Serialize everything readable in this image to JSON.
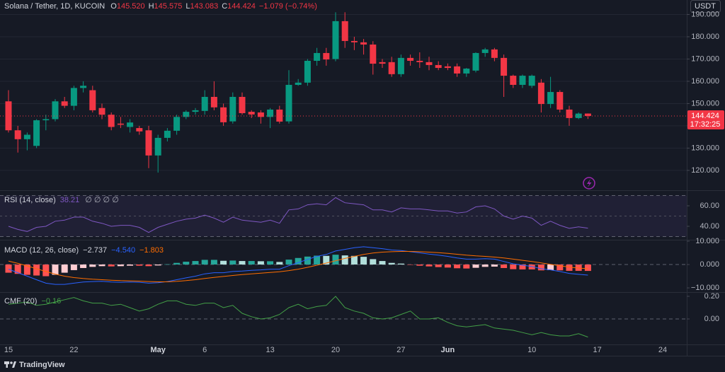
{
  "chart_data": [
    {
      "type": "candlestick",
      "title": "Solana / Tether, 1D, KUCOIN",
      "legend": [
        {
          "key": "O",
          "value": "145.520"
        },
        {
          "key": "H",
          "value": "145.575"
        },
        {
          "key": "L",
          "value": "143.083"
        },
        {
          "key": "C",
          "value": "144.424"
        }
      ],
      "change": "−1.079 (−0.74%)",
      "currency": "USDT",
      "price_label": "144.424",
      "countdown": "17:32:25",
      "categories": [
        "15",
        null,
        null,
        null,
        null,
        null,
        null,
        "22",
        null,
        null,
        null,
        null,
        null,
        null,
        null,
        null,
        "May",
        null,
        null,
        null,
        null,
        "6",
        null,
        null,
        null,
        null,
        null,
        null,
        "13",
        null,
        null,
        null,
        null,
        null,
        null,
        "20",
        null,
        null,
        null,
        null,
        null,
        null,
        "27",
        null,
        null,
        null,
        null,
        "Jun",
        null,
        null,
        null,
        null,
        null,
        null,
        null,
        null,
        "10",
        null,
        null,
        null,
        null,
        null,
        null,
        "17",
        null,
        null,
        null,
        null,
        null,
        null,
        "24",
        null,
        null
      ],
      "open": [
        151,
        138,
        134,
        131,
        142.5,
        143,
        151,
        149,
        157,
        156,
        148,
        145,
        141,
        139.5,
        139,
        138,
        126.7,
        134.6,
        137.8,
        144,
        146.3,
        146.7,
        153,
        148.3,
        142,
        153,
        146.3,
        146,
        144,
        147.3,
        142,
        158.4,
        159.4,
        169.2,
        172.7,
        170,
        187,
        178.1,
        177.5,
        176.5,
        168.6,
        168.6,
        163.2,
        170.5,
        169.2,
        168.6,
        167.3,
        166.7,
        166.7,
        163.5,
        164.8,
        172.7,
        174.3,
        170.5,
        162.5,
        158.4,
        158,
        159.4,
        149.8,
        155.2,
        147.3,
        143.5,
        145.52,
        null,
        null,
        null,
        null,
        null,
        null,
        null,
        null,
        null,
        null
      ],
      "high": [
        156,
        140,
        137,
        143,
        145,
        152,
        153,
        158,
        160,
        158,
        150,
        146,
        144,
        143,
        140,
        140,
        136,
        139,
        145,
        147,
        148,
        156,
        160,
        150,
        155,
        155,
        147,
        147,
        148,
        149,
        165,
        161,
        170,
        175,
        175,
        191,
        191,
        180,
        179,
        178,
        170,
        171,
        172,
        172,
        173,
        171,
        169,
        168,
        168,
        166,
        173,
        175,
        175,
        172,
        163,
        163,
        163,
        161,
        162,
        156,
        149,
        146,
        145.575,
        null,
        null,
        null,
        null,
        null,
        null,
        null,
        null,
        null,
        null
      ],
      "low": [
        137,
        128,
        129,
        130,
        138,
        142,
        148,
        147,
        155,
        146,
        143,
        138,
        139,
        137,
        136,
        121,
        119,
        133,
        136,
        143,
        145,
        145,
        147,
        140,
        141,
        145,
        143.5,
        141,
        139,
        141,
        141,
        158,
        158,
        167,
        167,
        169,
        175,
        174,
        172,
        163,
        166,
        162,
        162,
        167,
        166,
        165,
        165,
        165,
        162,
        162,
        164,
        171,
        169,
        153,
        157,
        157,
        157,
        146,
        148,
        146,
        140,
        143,
        143.083,
        null,
        null,
        null,
        null,
        null,
        null,
        null,
        null,
        null,
        null
      ],
      "close": [
        138,
        134,
        136,
        142.5,
        143,
        151,
        149,
        157,
        158,
        147,
        145,
        139.5,
        140.5,
        141.5,
        137.5,
        126.7,
        134.6,
        137.8,
        144,
        146.3,
        147,
        153,
        148.3,
        141.6,
        153,
        145.7,
        145.1,
        144,
        147.3,
        141.9,
        158.4,
        159.4,
        169.2,
        172.7,
        169.8,
        187,
        178.1,
        177.5,
        176.5,
        167.9,
        167.9,
        163.2,
        170.5,
        169.2,
        168.6,
        167.3,
        166,
        166,
        163.5,
        165.7,
        172.7,
        174.3,
        170.5,
        162.5,
        158.4,
        162.5,
        162.5,
        149.8,
        155.2,
        147.3,
        143.5,
        145.5,
        144.424,
        null,
        null,
        null,
        null,
        null,
        null,
        null,
        null,
        null,
        null
      ],
      "up_color": "#089981",
      "down_color": "#f23645",
      "ylim": [
        111.4,
        196.5
      ],
      "yticks": [
        {
          "value": 120,
          "label": "120.000"
        },
        {
          "value": 130,
          "label": "130.000"
        },
        {
          "value": 140,
          "label": "140.000"
        },
        {
          "value": 150,
          "label": "150.000"
        },
        {
          "value": 160,
          "label": "160.000"
        },
        {
          "value": 170,
          "label": "170.000"
        },
        {
          "value": 180,
          "label": "180.000"
        },
        {
          "value": 190,
          "label": "190.000"
        }
      ],
      "grid": true
    },
    {
      "type": "line",
      "title": "RSI (14, close)",
      "value_label": "38.21",
      "icons": "∅ ∅ ∅ ∅",
      "color": "#7e57c2",
      "values": [
        40,
        37,
        35,
        39,
        40,
        45,
        46,
        49,
        49,
        45,
        43,
        40,
        41,
        41,
        39,
        34,
        39,
        42,
        45,
        47,
        48,
        51,
        48,
        44,
        49,
        46,
        45,
        44,
        46,
        43,
        56,
        57,
        61,
        62,
        61,
        68,
        63,
        62,
        61,
        56,
        56,
        54,
        58,
        57,
        57,
        56,
        55,
        55,
        53,
        54,
        59,
        60,
        57,
        50,
        47,
        50,
        48,
        41,
        45,
        41,
        38,
        39.5,
        38.21,
        null,
        null,
        null,
        null,
        null,
        null,
        null,
        null,
        null,
        null
      ],
      "band": [
        30,
        70
      ],
      "midline": 50,
      "ylim": [
        26.9,
        73.8
      ],
      "yticks": [
        {
          "value": 40,
          "label": "40.00"
        },
        {
          "value": 60,
          "label": "60.00"
        }
      ]
    },
    {
      "type": "macd",
      "title": "MACD (12, 26, close)",
      "histogram": {
        "value_label": "−2.737",
        "colors": [
          "#26a69a",
          "#b2dfdb",
          "#ffcdd2",
          "#ff5252"
        ],
        "values": [
          -3.5,
          -4,
          -4.4,
          -4.7,
          -5,
          -4.4,
          -3.5,
          -2.4,
          -1.5,
          -1,
          -0.7,
          -0.8,
          -0.7,
          -0.5,
          -0.5,
          -0.7,
          -0.4,
          0.1,
          0.7,
          1.2,
          1.5,
          2,
          2,
          1.6,
          1.7,
          1.5,
          1.5,
          1.4,
          1.4,
          1.1,
          2.1,
          2.8,
          3.4,
          3.8,
          3.7,
          4.2,
          3.9,
          3.7,
          3.3,
          2.3,
          1.5,
          0.7,
          0.4,
          -0.1,
          -0.5,
          -0.8,
          -1.1,
          -1.3,
          -1.6,
          -1.7,
          -1.4,
          -1,
          -0.9,
          -1.5,
          -2,
          -2.1,
          -2.1,
          -2.5,
          -2.4,
          -2.5,
          -2.7,
          -2.7,
          -2.737,
          null,
          null,
          null,
          null,
          null,
          null,
          null,
          null,
          null,
          null
        ]
      },
      "macd": {
        "value_label": "−4.540",
        "color": "#2962ff",
        "values": [
          -2,
          -3.5,
          -5,
          -6.5,
          -8,
          -8.5,
          -8.5,
          -8,
          -7.5,
          -7.3,
          -7.2,
          -7.5,
          -7.6,
          -7.5,
          -7.6,
          -8,
          -7.8,
          -7.3,
          -6.5,
          -5.7,
          -5,
          -4,
          -3.5,
          -3.5,
          -3,
          -2.8,
          -2.5,
          -2.3,
          -2,
          -2,
          -0.5,
          0.8,
          2.2,
          3.5,
          4.3,
          5.8,
          6.5,
          7.2,
          7.6,
          7.2,
          6.8,
          6.2,
          6,
          5.5,
          5,
          4.5,
          4,
          3.5,
          2.8,
          2.3,
          2.3,
          2.5,
          2.3,
          1.3,
          0.3,
          -0.3,
          -0.8,
          -1.8,
          -2.3,
          -3,
          -3.8,
          -4.2,
          -4.54,
          null,
          null,
          null,
          null,
          null,
          null,
          null,
          null,
          null,
          null
        ]
      },
      "signal": {
        "value_label": "−1.803",
        "color": "#ff6d00",
        "values": [
          1.5,
          0.5,
          -0.6,
          -1.8,
          -3,
          -4.1,
          -5,
          -5.6,
          -6,
          -6.3,
          -6.5,
          -6.7,
          -6.9,
          -7,
          -7.1,
          -7.3,
          -7.4,
          -7.4,
          -7.2,
          -6.9,
          -6.5,
          -6,
          -5.5,
          -5.1,
          -4.7,
          -4.3,
          -4,
          -3.7,
          -3.4,
          -3.1,
          -2.6,
          -2,
          -1.2,
          -0.3,
          0.6,
          1.6,
          2.6,
          3.5,
          4.3,
          4.9,
          5.3,
          5.5,
          5.6,
          5.6,
          5.5,
          5.3,
          5.1,
          4.8,
          4.4,
          4,
          3.7,
          3.5,
          3.2,
          2.8,
          2.3,
          1.8,
          1.3,
          0.7,
          0.1,
          -0.5,
          -1.1,
          -1.5,
          -1.803,
          null,
          null,
          null,
          null,
          null,
          null,
          null,
          null,
          null,
          null
        ]
      },
      "hline": 0,
      "ylim": [
        -11.8,
        10.3
      ],
      "yticks": [
        {
          "value": 10,
          "label": "10.000"
        },
        {
          "value": 0,
          "label": "0.000"
        },
        {
          "value": -10,
          "label": "−10.000"
        }
      ]
    },
    {
      "type": "line",
      "title": "CMF (20)",
      "value_label": "−0.16",
      "color": "#43a047",
      "values": [
        0.13,
        0.14,
        0.15,
        0.12,
        0.13,
        0.15,
        0.17,
        0.19,
        0.16,
        0.14,
        0.14,
        0.12,
        0.13,
        0.1,
        0.07,
        0.09,
        0.13,
        0.16,
        0.16,
        0.13,
        0.12,
        0.14,
        0.14,
        0.1,
        0.12,
        0.05,
        0.02,
        0,
        0.01,
        0.04,
        0.1,
        0.13,
        0.09,
        0.11,
        0.12,
        0.2,
        0.1,
        0.07,
        0.05,
        0.01,
        0,
        0.01,
        0.04,
        0.07,
        0,
        0,
        0.01,
        -0.03,
        -0.06,
        -0.07,
        -0.06,
        -0.05,
        -0.08,
        -0.09,
        -0.1,
        -0.12,
        -0.14,
        -0.12,
        -0.14,
        -0.15,
        -0.15,
        -0.13,
        -0.16,
        null,
        null,
        null,
        null,
        null,
        null,
        null,
        null,
        null,
        null
      ],
      "hline": 0,
      "ylim": [
        -0.225,
        0.231
      ],
      "yticks": [
        {
          "value": 0.2,
          "label": "0.20"
        },
        {
          "value": 0,
          "label": "0.00"
        }
      ]
    }
  ],
  "footer": {
    "brand": "TradingView"
  }
}
